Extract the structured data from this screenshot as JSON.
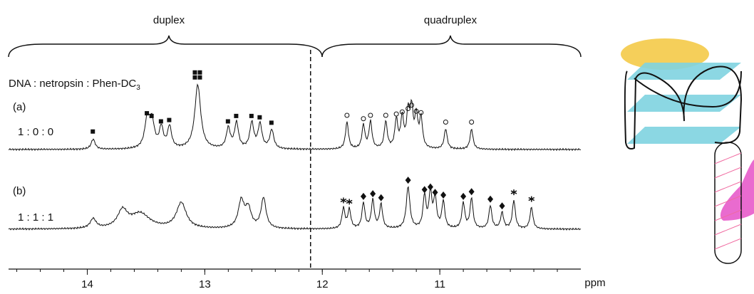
{
  "figure": {
    "region_labels": [
      "duplex",
      "quadruplex"
    ],
    "legend_prefix": "DNA : netropsin : Phen-DC",
    "legend_subscript": "3",
    "axis": {
      "unit": "ppm",
      "xlim": [
        14.67,
        9.8
      ],
      "xticks": [
        14,
        13,
        12,
        11
      ],
      "divider": 12.1
    },
    "spectra": [
      {
        "label": "(a)",
        "ratio": "1 : 0 : 0",
        "peaks": [
          {
            "ppm": 13.95,
            "height": 15,
            "width": 0.02,
            "marker": "square",
            "count": 1
          },
          {
            "ppm": 13.49,
            "height": 42,
            "width": 0.025,
            "marker": "square",
            "count": 1
          },
          {
            "ppm": 13.45,
            "height": 38,
            "width": 0.025,
            "marker": "square",
            "count": 1
          },
          {
            "ppm": 13.37,
            "height": 30,
            "width": 0.02,
            "marker": "square",
            "count": 1
          },
          {
            "ppm": 13.3,
            "height": 32,
            "width": 0.02,
            "marker": "square",
            "count": 1
          },
          {
            "ppm": 13.06,
            "height": 95,
            "width": 0.03,
            "marker": "square",
            "count": 4
          },
          {
            "ppm": 12.8,
            "height": 30,
            "width": 0.02,
            "marker": "square",
            "count": 1
          },
          {
            "ppm": 12.73,
            "height": 38,
            "width": 0.02,
            "marker": "square",
            "count": 1
          },
          {
            "ppm": 12.6,
            "height": 38,
            "width": 0.02,
            "marker": "square",
            "count": 1
          },
          {
            "ppm": 12.53,
            "height": 36,
            "width": 0.02,
            "marker": "square",
            "count": 1
          },
          {
            "ppm": 12.43,
            "height": 28,
            "width": 0.02,
            "marker": "square",
            "count": 1
          },
          {
            "ppm": 11.79,
            "height": 40,
            "width": 0.015,
            "marker": "circle",
            "count": 1
          },
          {
            "ppm": 11.65,
            "height": 35,
            "width": 0.015,
            "marker": "circle",
            "count": 1
          },
          {
            "ppm": 11.59,
            "height": 40,
            "width": 0.015,
            "marker": "circle",
            "count": 1
          },
          {
            "ppm": 11.46,
            "height": 40,
            "width": 0.015,
            "marker": "circle",
            "count": 1
          },
          {
            "ppm": 11.37,
            "height": 42,
            "width": 0.015,
            "marker": "circle",
            "count": 1
          },
          {
            "ppm": 11.32,
            "height": 45,
            "width": 0.015,
            "marker": "circle",
            "count": 1
          },
          {
            "ppm": 11.27,
            "height": 50,
            "width": 0.015,
            "marker": "circle",
            "count": 1
          },
          {
            "ppm": 11.24,
            "height": 55,
            "width": 0.015,
            "marker": "circle",
            "count": 1
          },
          {
            "ppm": 11.2,
            "height": 46,
            "width": 0.015,
            "marker": "circle",
            "count": 1
          },
          {
            "ppm": 11.16,
            "height": 44,
            "width": 0.015,
            "marker": "circle",
            "count": 1
          },
          {
            "ppm": 10.95,
            "height": 30,
            "width": 0.015,
            "marker": "circle",
            "count": 1
          },
          {
            "ppm": 10.73,
            "height": 30,
            "width": 0.015,
            "marker": "circle",
            "count": 1
          }
        ]
      },
      {
        "label": "(b)",
        "ratio": "1 : 1 : 1",
        "peaks": [
          {
            "ppm": 13.95,
            "height": 14,
            "width": 0.03,
            "marker": null,
            "count": 0
          },
          {
            "ppm": 13.7,
            "height": 25,
            "width": 0.05,
            "marker": null,
            "count": 0
          },
          {
            "ppm": 13.55,
            "height": 22,
            "width": 0.1,
            "marker": null,
            "count": 0
          },
          {
            "ppm": 13.2,
            "height": 38,
            "width": 0.05,
            "marker": null,
            "count": 0
          },
          {
            "ppm": 12.69,
            "height": 40,
            "width": 0.03,
            "marker": null,
            "count": 0
          },
          {
            "ppm": 12.63,
            "height": 28,
            "width": 0.03,
            "marker": null,
            "count": 0
          },
          {
            "ppm": 12.5,
            "height": 45,
            "width": 0.025,
            "marker": null,
            "count": 0
          },
          {
            "ppm": 11.82,
            "height": 30,
            "width": 0.015,
            "marker": "star",
            "count": 1
          },
          {
            "ppm": 11.77,
            "height": 28,
            "width": 0.015,
            "marker": "star",
            "count": 1
          },
          {
            "ppm": 11.65,
            "height": 38,
            "width": 0.015,
            "marker": "diamond",
            "count": 1
          },
          {
            "ppm": 11.57,
            "height": 42,
            "width": 0.015,
            "marker": "diamond",
            "count": 1
          },
          {
            "ppm": 11.5,
            "height": 36,
            "width": 0.015,
            "marker": "diamond",
            "count": 1
          },
          {
            "ppm": 11.27,
            "height": 62,
            "width": 0.018,
            "marker": "diamond",
            "count": 1
          },
          {
            "ppm": 11.13,
            "height": 48,
            "width": 0.015,
            "marker": "diamond",
            "count": 1
          },
          {
            "ppm": 11.08,
            "height": 52,
            "width": 0.015,
            "marker": "diamond",
            "count": 1
          },
          {
            "ppm": 11.04,
            "height": 44,
            "width": 0.015,
            "marker": "diamond",
            "count": 1
          },
          {
            "ppm": 10.97,
            "height": 40,
            "width": 0.015,
            "marker": "diamond",
            "count": 1
          },
          {
            "ppm": 10.8,
            "height": 38,
            "width": 0.015,
            "marker": "diamond",
            "count": 1
          },
          {
            "ppm": 10.73,
            "height": 45,
            "width": 0.015,
            "marker": "diamond",
            "count": 1
          },
          {
            "ppm": 10.57,
            "height": 34,
            "width": 0.015,
            "marker": "diamond",
            "count": 1
          },
          {
            "ppm": 10.47,
            "height": 24,
            "width": 0.015,
            "marker": "diamond",
            "count": 1
          },
          {
            "ppm": 10.37,
            "height": 42,
            "width": 0.015,
            "marker": "star",
            "count": 1
          },
          {
            "ppm": 10.22,
            "height": 32,
            "width": 0.015,
            "marker": "star",
            "count": 1
          }
        ]
      }
    ]
  }
}
